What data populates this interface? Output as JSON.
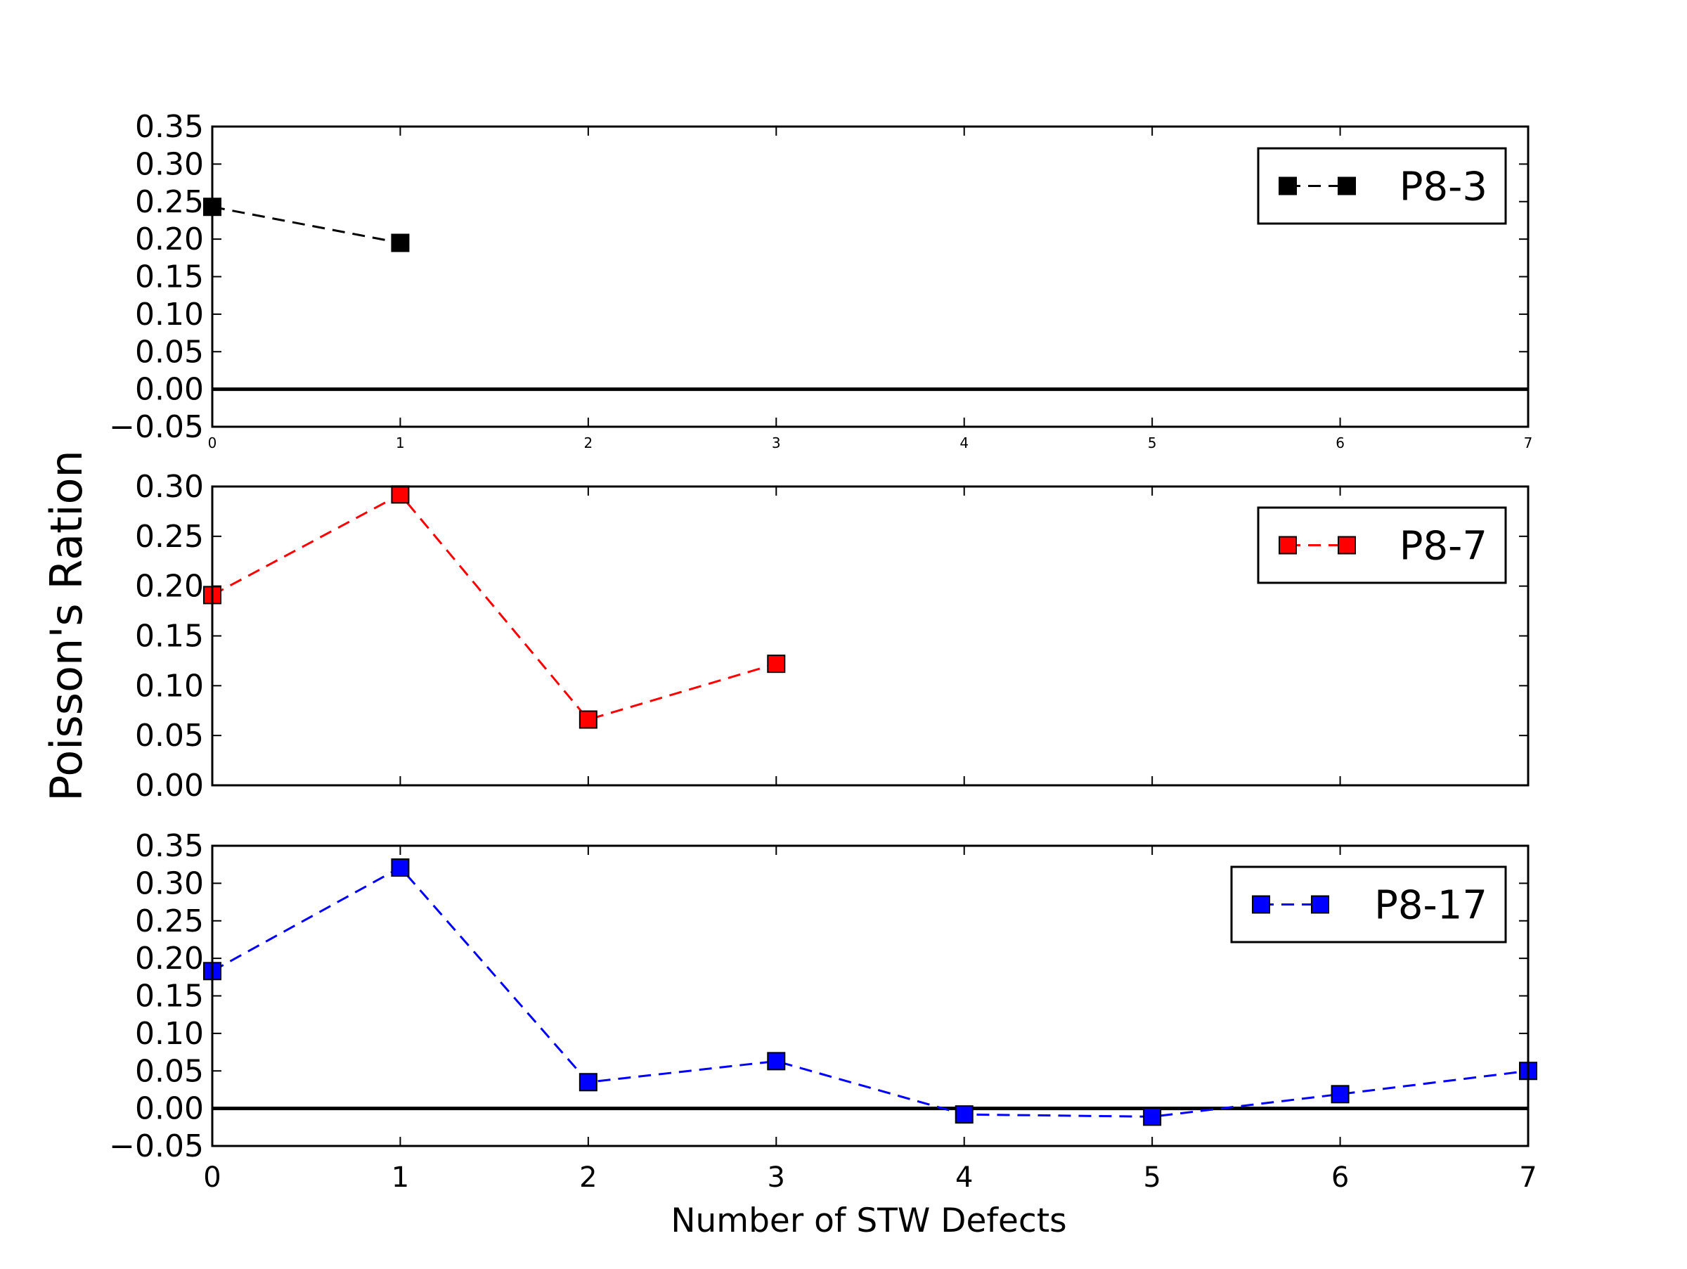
{
  "figure": {
    "ylabel": "Poisson's Ration",
    "xlabel": "Number of STW Defects"
  },
  "chart_data": [
    {
      "type": "line",
      "xlim": [
        0,
        7
      ],
      "ylim": [
        -0.05,
        0.35
      ],
      "xticks": [
        "0",
        "1",
        "2",
        "3",
        "4",
        "5",
        "6",
        "7"
      ],
      "yticks": [
        "−0.05",
        "0.00",
        "0.05",
        "0.10",
        "0.15",
        "0.20",
        "0.25",
        "0.30",
        "0.35"
      ],
      "zero_line": true,
      "grid": false,
      "legend_position": "top-right",
      "series": [
        {
          "name": "P8-3",
          "color": "#000000",
          "marker": "square",
          "linestyle": "dashed",
          "x": [
            0,
            1
          ],
          "y": [
            0.243,
            0.195
          ]
        }
      ]
    },
    {
      "type": "line",
      "xlim": [
        0,
        7
      ],
      "ylim": [
        0.0,
        0.3
      ],
      "xticks": [],
      "yticks": [
        "0.00",
        "0.05",
        "0.10",
        "0.15",
        "0.20",
        "0.25",
        "0.30"
      ],
      "zero_line": false,
      "grid": false,
      "legend_position": "top-right",
      "series": [
        {
          "name": "P8-7",
          "color": "#ff0000",
          "marker": "square",
          "linestyle": "dashed",
          "x": [
            0,
            1,
            2,
            3
          ],
          "y": [
            0.191,
            0.292,
            0.066,
            0.122
          ]
        }
      ]
    },
    {
      "type": "line",
      "xlim": [
        0,
        7
      ],
      "ylim": [
        -0.05,
        0.35
      ],
      "xticks": [
        "0",
        "1",
        "2",
        "3",
        "4",
        "5",
        "6",
        "7"
      ],
      "yticks": [
        "−0.05",
        "0.00",
        "0.05",
        "0.10",
        "0.15",
        "0.20",
        "0.25",
        "0.30",
        "0.35"
      ],
      "zero_line": true,
      "grid": false,
      "legend_position": "top-right",
      "series": [
        {
          "name": "P8-17",
          "color": "#0000ff",
          "marker": "square",
          "linestyle": "dashed",
          "x": [
            0,
            1,
            2,
            3,
            4,
            5,
            6,
            7
          ],
          "y": [
            0.183,
            0.321,
            0.035,
            0.063,
            -0.008,
            -0.011,
            0.019,
            0.05
          ]
        }
      ]
    }
  ]
}
